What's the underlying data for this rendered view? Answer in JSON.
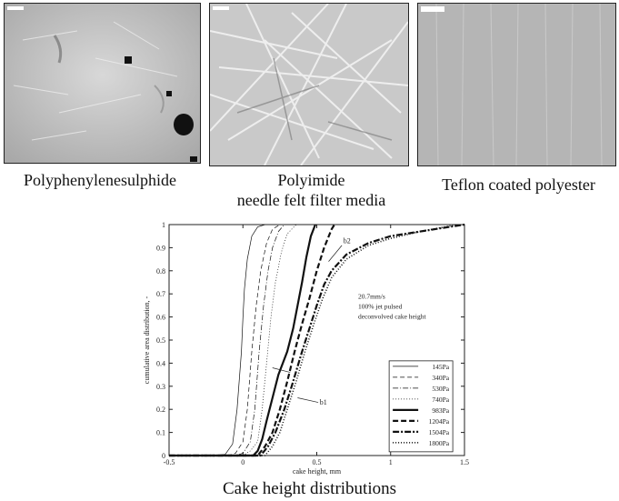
{
  "panels": [
    {
      "caption": "Polyphenylenesulphide",
      "caption_line2": ""
    },
    {
      "caption": "Polyimide",
      "caption_line2": "needle felt filter media"
    },
    {
      "caption": "Teflon coated polyester",
      "caption_line2": ""
    }
  ],
  "bottom_caption": "Cake height distributions",
  "chart_data": {
    "type": "line",
    "title": "",
    "xlabel": "cake height, mm",
    "ylabel": "cumulative area distribution, -",
    "xlim": [
      -0.5,
      1.5
    ],
    "ylim": [
      0,
      1
    ],
    "xticks": [
      "-0.5",
      "0",
      "0.5",
      "1",
      "1.5"
    ],
    "yticks": [
      "0",
      "0.1",
      "0.2",
      "0.3",
      "0.4",
      "0.5",
      "0.6",
      "0.7",
      "0.8",
      "0.9",
      "1"
    ],
    "grid": false,
    "legend_position": "bottom-right",
    "annotation_lines": [
      "20.7mm/s",
      "100% jet pulsed",
      "deconvolved cake height"
    ],
    "point_labels": [
      "b2",
      "b1"
    ],
    "series": [
      {
        "name": "145Pa",
        "style": "thin-solid",
        "x": [
          -0.5,
          -0.2,
          -0.12,
          -0.07,
          -0.04,
          -0.01,
          0.0,
          0.01,
          0.03,
          0.06,
          0.1,
          0.15
        ],
        "y": [
          0,
          0,
          0.005,
          0.05,
          0.2,
          0.45,
          0.6,
          0.72,
          0.85,
          0.95,
          0.99,
          1.0
        ]
      },
      {
        "name": "340Pa",
        "style": "thin-dashed",
        "x": [
          -0.5,
          -0.1,
          -0.05,
          0.0,
          0.03,
          0.06,
          0.09,
          0.12,
          0.16,
          0.2,
          0.25
        ],
        "y": [
          0,
          0,
          0.01,
          0.06,
          0.2,
          0.45,
          0.65,
          0.8,
          0.92,
          0.98,
          1.0
        ]
      },
      {
        "name": "530Pa",
        "style": "thin-dashdot",
        "x": [
          -0.5,
          -0.05,
          0.0,
          0.05,
          0.08,
          0.11,
          0.14,
          0.17,
          0.2,
          0.24,
          0.28
        ],
        "y": [
          0,
          0,
          0.01,
          0.06,
          0.2,
          0.45,
          0.65,
          0.8,
          0.9,
          0.97,
          1.0
        ]
      },
      {
        "name": "740Pa",
        "style": "thin-dotted",
        "x": [
          -0.5,
          0.0,
          0.05,
          0.1,
          0.13,
          0.16,
          0.19,
          0.22,
          0.26,
          0.3,
          0.36
        ],
        "y": [
          0,
          0,
          0.02,
          0.06,
          0.2,
          0.4,
          0.6,
          0.75,
          0.88,
          0.96,
          1.0
        ]
      },
      {
        "name": "983Pa",
        "style": "thick-solid",
        "x": [
          -0.5,
          0.07,
          0.1,
          0.13,
          0.16,
          0.2,
          0.24,
          0.3,
          0.34,
          0.37,
          0.4,
          0.43,
          0.46,
          0.49
        ],
        "y": [
          0,
          0,
          0.02,
          0.07,
          0.15,
          0.25,
          0.35,
          0.45,
          0.55,
          0.65,
          0.75,
          0.86,
          0.95,
          1.0
        ]
      },
      {
        "name": "1204Pa",
        "style": "thick-dashed",
        "x": [
          -0.5,
          0.1,
          0.15,
          0.2,
          0.25,
          0.3,
          0.35,
          0.4,
          0.45,
          0.5,
          0.55,
          0.6,
          0.62
        ],
        "y": [
          0,
          0,
          0.04,
          0.1,
          0.2,
          0.32,
          0.45,
          0.57,
          0.68,
          0.8,
          0.9,
          0.98,
          1.0
        ]
      },
      {
        "name": "1504Pa",
        "style": "thick-dashdot",
        "x": [
          -0.5,
          0.12,
          0.17,
          0.22,
          0.28,
          0.33,
          0.4,
          0.45,
          0.5,
          0.55,
          0.6,
          0.7,
          0.85,
          1.0,
          1.2,
          1.4,
          1.5
        ],
        "y": [
          0,
          0,
          0.04,
          0.1,
          0.2,
          0.3,
          0.45,
          0.55,
          0.65,
          0.74,
          0.8,
          0.87,
          0.92,
          0.95,
          0.97,
          0.99,
          1.0
        ]
      },
      {
        "name": "1800Pa",
        "style": "thick-dotted",
        "x": [
          -0.5,
          0.15,
          0.2,
          0.25,
          0.3,
          0.36,
          0.42,
          0.48,
          0.54,
          0.6,
          0.7,
          0.85,
          1.0,
          1.2,
          1.45
        ],
        "y": [
          0,
          0,
          0.04,
          0.1,
          0.2,
          0.32,
          0.45,
          0.57,
          0.68,
          0.77,
          0.85,
          0.91,
          0.94,
          0.97,
          1.0
        ]
      }
    ]
  }
}
